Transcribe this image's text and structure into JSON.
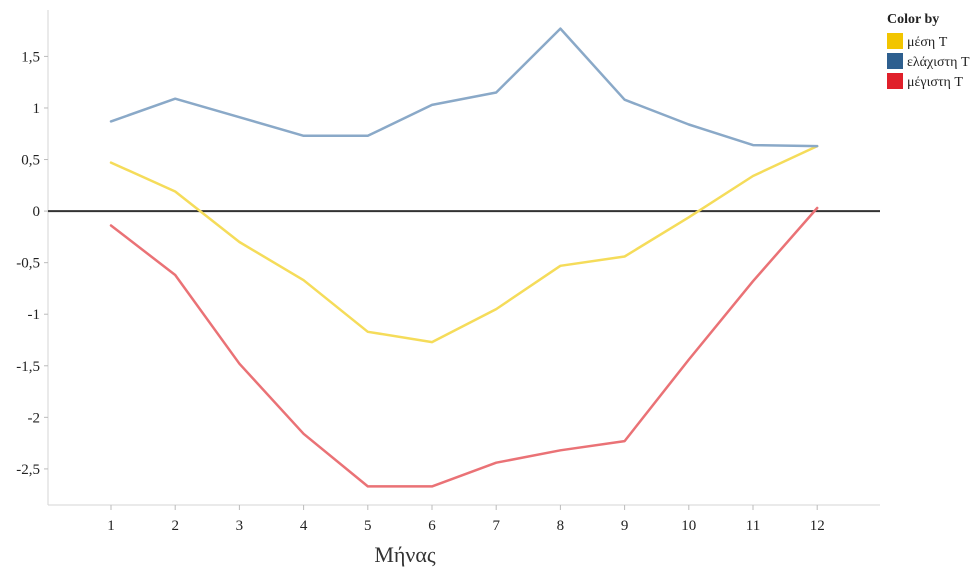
{
  "chart_data": {
    "type": "line",
    "x": [
      1,
      2,
      3,
      4,
      5,
      6,
      7,
      8,
      9,
      10,
      11,
      12
    ],
    "xlabel": "Μήνας",
    "ylabel": "",
    "ylim": [
      -2.85,
      1.95
    ],
    "yticks": [
      "1,5",
      "1",
      "0,5",
      "0",
      "-0,5",
      "-1",
      "-1,5",
      "-2",
      "-2,5"
    ],
    "ytick_values": [
      1.5,
      1,
      0.5,
      0,
      -0.5,
      -1,
      -1.5,
      -2,
      -2.5
    ],
    "xticks": [
      "1",
      "2",
      "3",
      "4",
      "5",
      "6",
      "7",
      "8",
      "9",
      "10",
      "11",
      "12"
    ],
    "grid": false,
    "zero_line": true,
    "legend": {
      "title": "Color by",
      "placement": "top-right"
    },
    "series": [
      {
        "name": "μέση T",
        "color": "#f5dc5a",
        "swatch": "#f2c500",
        "values": [
          0.47,
          0.19,
          -0.3,
          -0.67,
          -1.17,
          -1.27,
          -0.95,
          -0.53,
          -0.44,
          -0.06,
          0.34,
          0.63
        ]
      },
      {
        "name": "ελάχιστη T",
        "color": "#8aa9c8",
        "swatch": "#2e5f8f",
        "values": [
          0.87,
          1.09,
          0.91,
          0.73,
          0.73,
          1.03,
          1.15,
          1.77,
          1.08,
          0.84,
          0.64,
          0.63
        ]
      },
      {
        "name": "μέγιστη T",
        "color": "#ea7276",
        "swatch": "#e0202a",
        "values": [
          -0.14,
          -0.62,
          -1.48,
          -2.16,
          -2.67,
          -2.67,
          -2.44,
          -2.32,
          -2.23,
          -1.44,
          -0.68,
          0.03
        ]
      }
    ]
  }
}
